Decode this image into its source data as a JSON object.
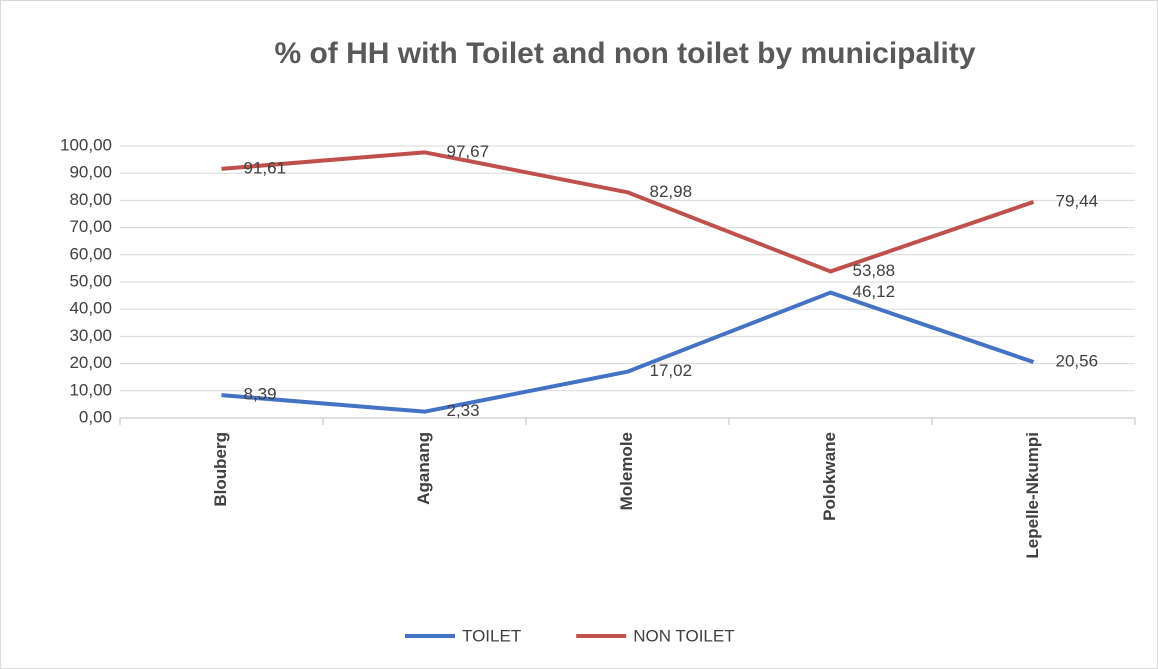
{
  "chart_data": {
    "type": "line",
    "title": "% of HH with Toilet and non toilet by municipality",
    "categories": [
      "Blouberg",
      "Aganang",
      "Molemole",
      "Polokwane",
      "Lepelle-Nkumpi"
    ],
    "series": [
      {
        "name": "TOILET",
        "color": "#4472c4",
        "values": [
          8.39,
          2.33,
          17.02,
          46.12,
          20.56
        ],
        "value_labels": [
          "8,39",
          "2,33",
          "17,02",
          "46,12",
          "20,56"
        ]
      },
      {
        "name": "NON TOILET",
        "color": "#c0504d",
        "values": [
          91.61,
          97.67,
          82.98,
          53.88,
          79.44
        ],
        "value_labels": [
          "91,61",
          "97,67",
          "82,98",
          "53,88",
          "79,44"
        ]
      }
    ],
    "ylim": [
      0,
      100
    ],
    "yticks": [
      {
        "value": 0,
        "label": "0,00"
      },
      {
        "value": 10,
        "label": "10,00"
      },
      {
        "value": 20,
        "label": "20,00"
      },
      {
        "value": 30,
        "label": "30,00"
      },
      {
        "value": 40,
        "label": "40,00"
      },
      {
        "value": 50,
        "label": "50,00"
      },
      {
        "value": 60,
        "label": "60,00"
      },
      {
        "value": 70,
        "label": "70,00"
      },
      {
        "value": 80,
        "label": "80,00"
      },
      {
        "value": 90,
        "label": "90,00"
      },
      {
        "value": 100,
        "label": "100,00"
      }
    ],
    "grid": true,
    "legend": "bottom"
  }
}
